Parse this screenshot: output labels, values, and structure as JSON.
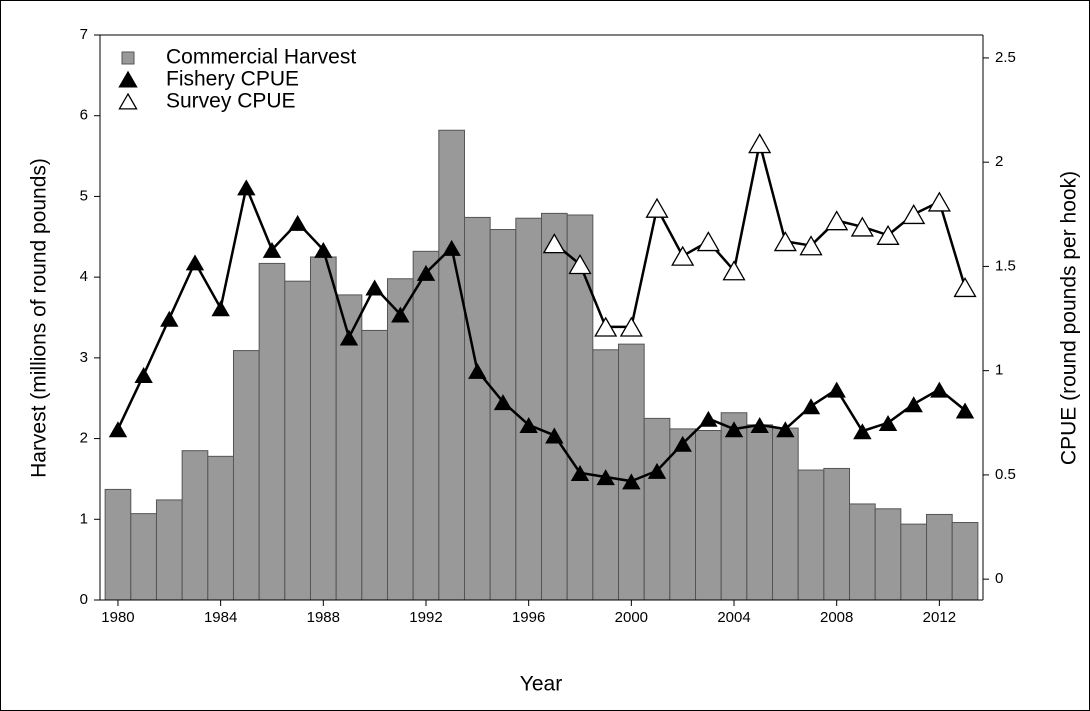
{
  "chart_data": {
    "type": "bar",
    "x_label": "Year",
    "y_label": "Harvest (millions of round pounds)",
    "y2_label": "CPUE (round pounds per hook)",
    "x": [
      1980,
      1981,
      1982,
      1983,
      1984,
      1985,
      1986,
      1987,
      1988,
      1989,
      1990,
      1991,
      1992,
      1993,
      1994,
      1995,
      1996,
      1997,
      1998,
      1999,
      2000,
      2001,
      2002,
      2003,
      2004,
      2005,
      2006,
      2007,
      2008,
      2009,
      2010,
      2011,
      2012,
      2013
    ],
    "series": [
      {
        "name": "Commercial Harvest",
        "type": "bar",
        "color": "#999999",
        "values": [
          1.37,
          1.07,
          1.24,
          1.85,
          1.78,
          3.09,
          4.17,
          3.95,
          4.25,
          3.78,
          3.34,
          3.98,
          4.32,
          5.82,
          4.74,
          4.59,
          4.73,
          4.79,
          4.77,
          3.1,
          3.17,
          2.25,
          2.12,
          2.1,
          2.32,
          2.17,
          2.13,
          1.61,
          1.63,
          1.19,
          1.13,
          0.94,
          1.06,
          0.96
        ]
      },
      {
        "name": "Fishery CPUE",
        "type": "line",
        "axis": "y2",
        "color": "#000000",
        "marker": "filled",
        "values": [
          0.72,
          0.98,
          1.25,
          1.52,
          1.3,
          1.88,
          1.58,
          1.71,
          1.58,
          1.16,
          1.4,
          1.27,
          1.47,
          1.59,
          1.0,
          0.85,
          0.74,
          0.69,
          0.51,
          0.49,
          0.47,
          0.52,
          0.65,
          0.77,
          0.72,
          0.74,
          0.72,
          0.83,
          0.91,
          0.71,
          0.75,
          0.84,
          0.91,
          0.81
        ]
      },
      {
        "name": "Survey CPUE",
        "type": "line",
        "axis": "y2",
        "color": "#000000",
        "marker": "open",
        "values": [
          null,
          null,
          null,
          null,
          null,
          null,
          null,
          null,
          null,
          null,
          null,
          null,
          null,
          null,
          null,
          null,
          null,
          1.61,
          1.51,
          1.21,
          1.21,
          1.78,
          1.55,
          1.62,
          1.48,
          2.09,
          1.62,
          1.6,
          1.72,
          1.69,
          1.65,
          1.75,
          1.81,
          1.4
        ]
      }
    ],
    "xlim": [
      1979.3,
      2013.7
    ],
    "xticks": [
      1980,
      1984,
      1988,
      1992,
      1996,
      2000,
      2004,
      2008,
      2012
    ],
    "ylim": [
      0,
      7
    ],
    "yticks": [
      0,
      1,
      2,
      3,
      4,
      5,
      6,
      7
    ],
    "y2lim": [
      -0.1,
      2.61
    ],
    "y2ticks": [
      0,
      0.5,
      1,
      1.5,
      2,
      2.5
    ],
    "legend": "upper-left"
  }
}
